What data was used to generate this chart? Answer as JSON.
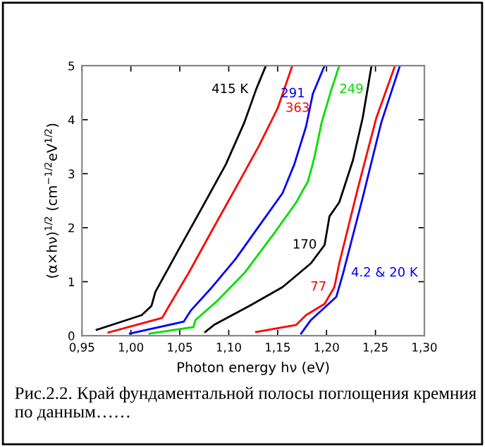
{
  "chart_data": {
    "type": "line",
    "xlabel": "Photon energy hν (eV)",
    "ylabel": "(α×hν)$^{1/2}$ (cm$^{−1/2}$eV$^{1/2}$)",
    "xlim": [
      0.95,
      1.3
    ],
    "ylim": [
      0,
      5
    ],
    "xticks": [
      {
        "value": 0.95,
        "label": "0,95"
      },
      {
        "value": 1.0,
        "label": "1,00"
      },
      {
        "value": 1.05,
        "label": "1,05"
      },
      {
        "value": 1.1,
        "label": "1,10"
      },
      {
        "value": 1.15,
        "label": "1,15"
      },
      {
        "value": 1.2,
        "label": "1,20"
      },
      {
        "value": 1.25,
        "label": "1,25"
      },
      {
        "value": 1.3,
        "label": "1,30"
      }
    ],
    "yticks": [
      0,
      1,
      2,
      3,
      4,
      5
    ],
    "grid": false,
    "legend": false,
    "line_style": "solid",
    "marker": "none",
    "series": [
      {
        "color": "#000000",
        "x": [
          0.965,
          1.011,
          1.021,
          1.025,
          1.049,
          1.073,
          1.097,
          1.116,
          1.128,
          1.138
        ],
        "values": [
          0.11,
          0.38,
          0.55,
          0.81,
          1.6,
          2.38,
          3.17,
          3.95,
          4.56,
          5.0
        ]
      },
      {
        "color": "#ff0000",
        "x": [
          0.977,
          1.032,
          1.039,
          1.059,
          1.083,
          1.107,
          1.131,
          1.15,
          1.165
        ],
        "values": [
          0.06,
          0.33,
          0.55,
          1.16,
          1.95,
          2.73,
          3.52,
          4.21,
          5.0
        ]
      },
      {
        "color": "#0000ff",
        "x": [
          0.999,
          1.054,
          1.061,
          1.083,
          1.107,
          1.131,
          1.155,
          1.167,
          1.179,
          1.186,
          1.198
        ],
        "values": [
          0.04,
          0.26,
          0.46,
          0.9,
          1.42,
          2.03,
          2.64,
          3.17,
          3.87,
          4.48,
          5.0
        ]
      },
      {
        "color": "#00dd00",
        "x": [
          1.019,
          1.064,
          1.066,
          1.088,
          1.116,
          1.145,
          1.169,
          1.181,
          1.185,
          1.188,
          1.195,
          1.205,
          1.213
        ],
        "values": [
          0.04,
          0.16,
          0.29,
          0.64,
          1.16,
          1.86,
          2.47,
          2.86,
          3.12,
          3.34,
          3.95,
          4.56,
          5.0
        ]
      },
      {
        "color": "#000000",
        "x": [
          1.076,
          1.085,
          1.121,
          1.155,
          1.184,
          1.198,
          1.203,
          1.213,
          1.227,
          1.237,
          1.246
        ],
        "values": [
          0.07,
          0.2,
          0.55,
          0.9,
          1.34,
          1.68,
          2.21,
          2.47,
          3.25,
          4.04,
          5.0
        ]
      },
      {
        "color": "#ff0000",
        "x": [
          1.128,
          1.169,
          1.179,
          1.198,
          1.208,
          1.213,
          1.232,
          1.251,
          1.27
        ],
        "values": [
          0.07,
          0.2,
          0.38,
          0.59,
          0.9,
          1.34,
          2.73,
          4.04,
          5.0
        ]
      },
      {
        "color": "#0000ff",
        "x": [
          1.174,
          1.184,
          1.21,
          1.217,
          1.237,
          1.256,
          1.275
        ],
        "values": [
          0.04,
          0.29,
          0.72,
          1.16,
          2.56,
          3.95,
          5.0
        ]
      }
    ],
    "annotations": [
      {
        "text": "415 K",
        "x": 1.128,
        "y": 4.56
      },
      {
        "text": "363",
        "x": 1.15,
        "y": 4.21
      },
      {
        "text": "291",
        "x": 1.186,
        "y": 4.48
      },
      {
        "text": "249",
        "x": 1.205,
        "y": 4.56
      },
      {
        "text": "170",
        "x": 1.198,
        "y": 1.68
      },
      {
        "text": "77",
        "x": 1.208,
        "y": 0.9
      },
      {
        "text": "4.2 & 20 K",
        "x": 1.217,
        "y": 1.16
      },
      "Рис.2.2. Край фундаментальной полосы поглощения кремния по данным……"
    ]
  }
}
